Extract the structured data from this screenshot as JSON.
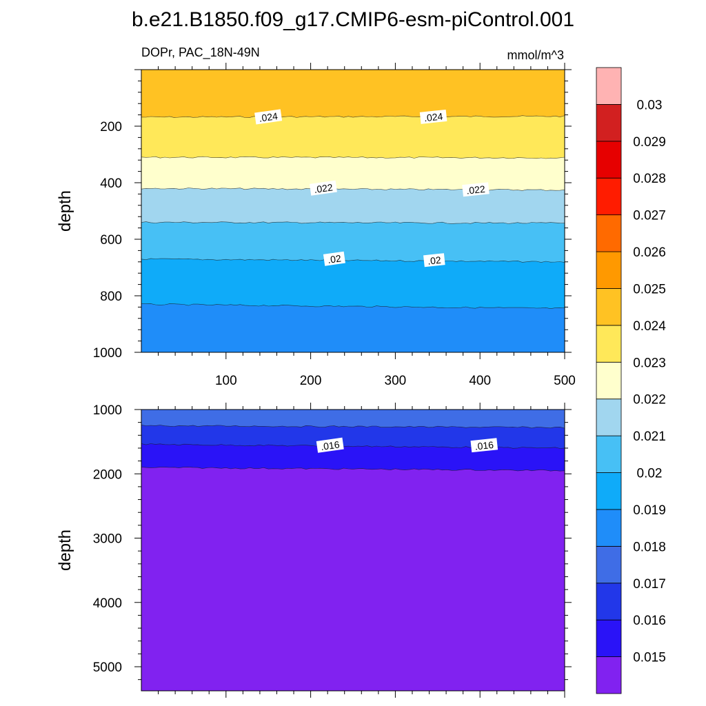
{
  "figure": {
    "title": "b.e21.B1850.f09_g17.CMIP6-esm-piControl.001",
    "subtitle_left": "DOPr, PAC_18N-49N",
    "subtitle_right": "mmol/m^3"
  },
  "chart_data": [
    {
      "type": "heatmap",
      "variant": "filled-contour",
      "panel": "upper",
      "ylabel": "depth",
      "xlabel": "",
      "xlim": [
        0,
        500
      ],
      "ylim": [
        0,
        1000
      ],
      "y_inverted": true,
      "x_ticks": [
        100,
        200,
        300,
        400,
        500
      ],
      "y_ticks": [
        200,
        400,
        600,
        800,
        1000
      ],
      "contour_depths": [
        {
          "level": 0.024,
          "left": 168,
          "right": 165
        },
        {
          "level": 0.023,
          "left": 310,
          "right": 312
        },
        {
          "level": 0.022,
          "left": 420,
          "right": 426
        },
        {
          "level": 0.021,
          "left": 540,
          "right": 543
        },
        {
          "level": 0.02,
          "left": 670,
          "right": 680
        },
        {
          "level": 0.019,
          "left": 830,
          "right": 845
        }
      ],
      "line_labels": [
        {
          "text": ".024",
          "x": 150,
          "y": 168
        },
        {
          "text": ".024",
          "x": 345,
          "y": 168
        },
        {
          "text": ".022",
          "x": 215,
          "y": 420
        },
        {
          "text": ".022",
          "x": 395,
          "y": 425
        },
        {
          "text": ".02",
          "x": 228,
          "y": 670
        },
        {
          "text": ".02",
          "x": 346,
          "y": 675
        }
      ]
    },
    {
      "type": "heatmap",
      "variant": "filled-contour",
      "panel": "lower",
      "ylabel": "depth",
      "xlabel": "",
      "xlim": [
        0,
        500
      ],
      "ylim": [
        1000,
        5375
      ],
      "y_inverted": true,
      "x_ticks": [
        100,
        200,
        300,
        400,
        500
      ],
      "y_ticks": [
        1000,
        2000,
        3000,
        4000,
        5000
      ],
      "contour_depths": [
        {
          "level": 0.017,
          "left": 1250,
          "right": 1280
        },
        {
          "level": 0.016,
          "left": 1540,
          "right": 1600
        },
        {
          "level": 0.015,
          "left": 1900,
          "right": 1950
        }
      ],
      "line_labels": [
        {
          "text": ".016",
          "x": 223,
          "y": 1560
        },
        {
          "text": ".016",
          "x": 405,
          "y": 1560
        }
      ]
    },
    {
      "type": "colorbar",
      "levels": [
        0.015,
        0.016,
        0.017,
        0.018,
        0.019,
        0.02,
        0.021,
        0.022,
        0.023,
        0.024,
        0.025,
        0.026,
        0.027,
        0.028,
        0.029,
        0.03
      ],
      "labels": [
        "0.015",
        "0.016",
        "0.017",
        "0.018",
        "0.019",
        "0.02",
        "0.021",
        "0.022",
        "0.023",
        "0.024",
        "0.025",
        "0.026",
        "0.027",
        "0.028",
        "0.029",
        "0.03"
      ],
      "colors": [
        "#8122f0",
        "#2a13f7",
        "#2237e9",
        "#3f6de6",
        "#1f8df9",
        "#0fabf9",
        "#47c0f5",
        "#a1d6ef",
        "#ffffcd",
        "#ffe859",
        "#ffc223",
        "#ff9900",
        "#ff6a00",
        "#ff1c00",
        "#e60000",
        "#d22020",
        "#ffb3b3"
      ]
    }
  ]
}
